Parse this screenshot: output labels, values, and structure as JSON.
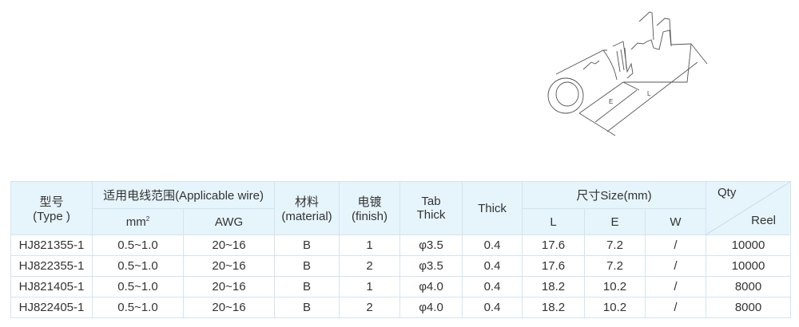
{
  "header": {
    "type": "型号\n(Type )",
    "type_cn": "型号",
    "type_en": "(Type )",
    "wire": "适用电线范围(Applicable wire)",
    "mm2": "mm",
    "mm2_sup": "2",
    "awg": "AWG",
    "material_cn": "材料",
    "material_en": "(material)",
    "finish_cn": "电镀",
    "finish_en": "(finish)",
    "tab_1": "Tab",
    "tab_2": "Thick",
    "thick": "Thick",
    "size": "尺寸Size(mm)",
    "l": "L",
    "e": "E",
    "w": "W",
    "qty": "Qty",
    "reel": "Reel"
  },
  "rows": [
    {
      "type": "HJ821355-1",
      "mm2": "0.5~1.0",
      "awg": "20~16",
      "material": "B",
      "finish": "1",
      "tab": "φ3.5",
      "thick": "0.4",
      "l": "17.6",
      "e": "7.2",
      "w": "/",
      "qty": "10000"
    },
    {
      "type": "HJ822355-1",
      "mm2": "0.5~1.0",
      "awg": "20~16",
      "material": "B",
      "finish": "2",
      "tab": "φ3.5",
      "thick": "0.4",
      "l": "17.6",
      "e": "7.2",
      "w": "/",
      "qty": "10000"
    },
    {
      "type": "HJ821405-1",
      "mm2": "0.5~1.0",
      "awg": "20~16",
      "material": "B",
      "finish": "1",
      "tab": "φ4.0",
      "thick": "0.4",
      "l": "18.2",
      "e": "10.2",
      "w": "/",
      "qty": "8000"
    },
    {
      "type": "HJ822405-1",
      "mm2": "0.5~1.0",
      "awg": "20~16",
      "material": "B",
      "finish": "2",
      "tab": "φ4.0",
      "thick": "0.4",
      "l": "18.2",
      "e": "10.2",
      "w": "/",
      "qty": "8000"
    }
  ],
  "drawing": {
    "label_e": "E",
    "label_l": "L"
  }
}
